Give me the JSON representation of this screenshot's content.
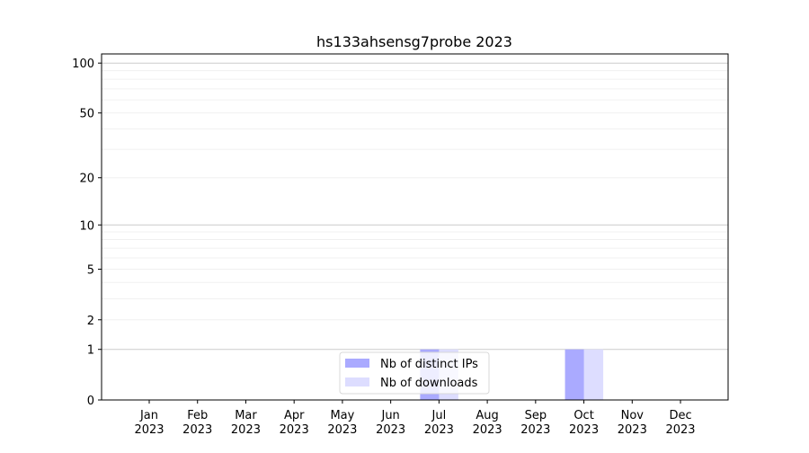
{
  "chart_data": {
    "type": "bar",
    "title": "hs133ahsensg7probe 2023",
    "xlabel": "",
    "ylabel": "",
    "y_scale": "log(1+y)",
    "ylim": [
      0,
      114
    ],
    "y_ticks": [
      0,
      1,
      2,
      5,
      10,
      20,
      50,
      100
    ],
    "grid": true,
    "legend_placement": "bottom-center",
    "categories": [
      "Jan\n2023",
      "Feb\n2023",
      "Mar\n2023",
      "Apr\n2023",
      "May\n2023",
      "Jun\n2023",
      "Jul\n2023",
      "Aug\n2023",
      "Sep\n2023",
      "Oct\n2023",
      "Nov\n2023",
      "Dec\n2023"
    ],
    "series": [
      {
        "name": "Nb of distinct IPs",
        "color": "#aaaaff",
        "values": [
          0,
          0,
          0,
          0,
          0,
          0,
          1,
          0,
          0,
          1,
          0,
          0
        ]
      },
      {
        "name": "Nb of downloads",
        "color": "#ddddff",
        "values": [
          0,
          0,
          0,
          0,
          0,
          0,
          1,
          0,
          0,
          1,
          0,
          0
        ]
      }
    ]
  }
}
